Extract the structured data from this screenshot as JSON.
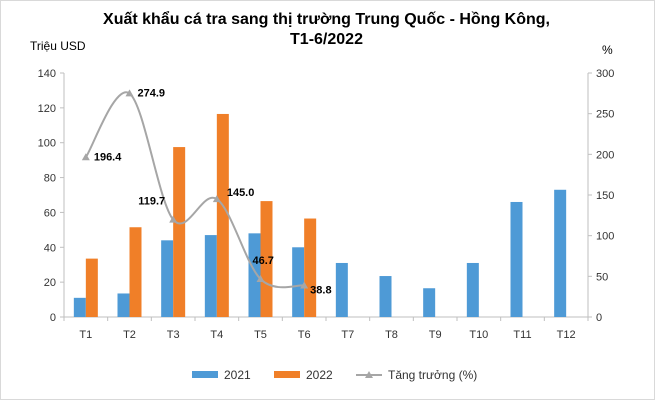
{
  "chart_data": {
    "type": "bar",
    "title": "Xuất khẩu cá tra sang thị trường Trung Quốc - Hồng Kông,",
    "subtitle": "T1-6/2022",
    "ylabel": "Triệu USD",
    "y2label": "%",
    "ylim": [
      0,
      140
    ],
    "y2lim": [
      0,
      300
    ],
    "yticks": [
      0,
      20,
      40,
      60,
      80,
      100,
      120,
      140
    ],
    "y2ticks": [
      0,
      50,
      100,
      150,
      200,
      250,
      300
    ],
    "categories": [
      "T1",
      "T2",
      "T3",
      "T4",
      "T5",
      "T6",
      "T7",
      "T8",
      "T9",
      "T10",
      "T11",
      "T12"
    ],
    "series": [
      {
        "name": "2021",
        "type": "bar",
        "axis": "left",
        "color": "#4e9ad6",
        "values": [
          11,
          13.5,
          44,
          47,
          48,
          40,
          31,
          23.5,
          16.5,
          31,
          66,
          73
        ]
      },
      {
        "name": "2022",
        "type": "bar",
        "axis": "left",
        "color": "#f07f28",
        "values": [
          33.5,
          51.5,
          97.5,
          116.5,
          66.5,
          56.5,
          null,
          null,
          null,
          null,
          null,
          null
        ]
      },
      {
        "name": "Tăng trưởng (%)",
        "type": "line",
        "axis": "right",
        "color": "#a6a6a6",
        "values": [
          196.4,
          274.9,
          119.7,
          145.0,
          46.7,
          38.8,
          null,
          null,
          null,
          null,
          null,
          null
        ],
        "labels": [
          "196.4",
          "274.9",
          "119.7",
          "145.0",
          "46.7",
          "38.8"
        ]
      }
    ],
    "legend_position": "bottom",
    "grid": false
  }
}
